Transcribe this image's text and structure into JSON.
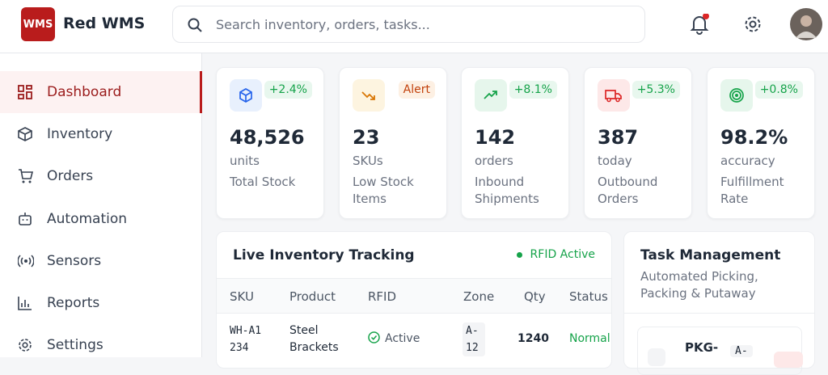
{
  "header": {
    "logo": "WMS",
    "brand": "Red WMS",
    "search_placeholder": "Search inventory, orders, tasks..."
  },
  "sidebar": {
    "items": [
      "Dashboard",
      "Inventory",
      "Orders",
      "Automation",
      "Sensors",
      "Reports",
      "Settings"
    ]
  },
  "stats": [
    {
      "change": "+2.4%",
      "value": "48,526",
      "unit": "units",
      "label": "Total Stock"
    },
    {
      "change": "Alert",
      "value": "23",
      "unit": "SKUs",
      "label": "Low Stock Items"
    },
    {
      "change": "+8.1%",
      "value": "142",
      "unit": "orders",
      "label": "Inbound Shipments"
    },
    {
      "change": "+5.3%",
      "value": "387",
      "unit": "today",
      "label": "Outbound Orders"
    },
    {
      "change": "+0.8%",
      "value": "98.2%",
      "unit": "accuracy",
      "label": "Fulfillment Rate"
    }
  ],
  "inventory": {
    "title": "Live Inventory Tracking",
    "status": "RFID Active",
    "columns": [
      "SKU",
      "Product",
      "RFID",
      "Zone",
      "Qty",
      "Status"
    ],
    "rows": [
      [
        "WH-A1234",
        "Steel Brackets",
        "Active",
        "A-12",
        "1240",
        "Normal"
      ]
    ]
  },
  "tasks": {
    "title": "Task Management",
    "subtitle": "Automated Picking, Packing & Putaway",
    "items": [
      {
        "id": "PKG-",
        "zone": "A-"
      }
    ]
  }
}
